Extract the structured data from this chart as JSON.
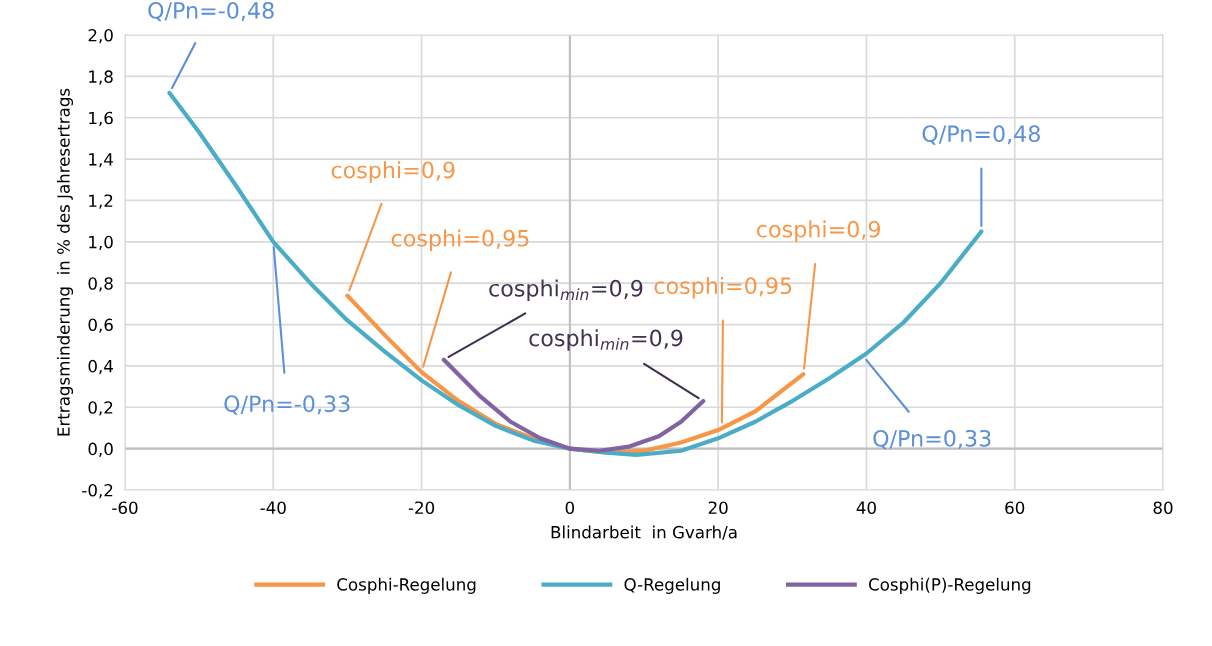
{
  "chart_data": {
    "type": "line",
    "xlabel": "Blindarbeit  in Gvarh/a",
    "ylabel": "Ertragsminderung  in % des Jahresertrags",
    "xlim": [
      -60,
      80
    ],
    "xticks": [
      -60,
      -40,
      -20,
      0,
      20,
      40,
      60,
      80
    ],
    "ylim": [
      -0.2,
      2.0
    ],
    "yticks": [
      {
        "value": -0.2,
        "label": "-0,2"
      },
      {
        "value": 0,
        "label": "0,0"
      },
      {
        "value": 0.2,
        "label": "0,2"
      },
      {
        "value": 0.4,
        "label": "0,4"
      },
      {
        "value": 0.6,
        "label": "0,6"
      },
      {
        "value": 0.8,
        "label": "0,8"
      },
      {
        "value": 1.0,
        "label": "1,0"
      },
      {
        "value": 1.2,
        "label": "1,2"
      },
      {
        "value": 1.4,
        "label": "1,4"
      },
      {
        "value": 1.6,
        "label": "1,6"
      },
      {
        "value": 1.8,
        "label": "1,8"
      },
      {
        "value": 2.0,
        "label": "2,0"
      }
    ],
    "grid": true,
    "legend": "bottom",
    "marker": "none",
    "line_style": "solid",
    "series": [
      {
        "name": "Cosphi-Regelung",
        "color": "#f79646",
        "x": [
          -30,
          -25,
          -20,
          -15,
          -10,
          -5,
          0,
          5,
          10,
          15,
          20,
          25,
          31.5
        ],
        "values": [
          0.74,
          0.55,
          0.37,
          0.23,
          0.12,
          0.05,
          0,
          -0.02,
          -0.01,
          0.03,
          0.09,
          0.18,
          0.36
        ]
      },
      {
        "name": "Q-Regelung",
        "color": "#4bacc6",
        "x": [
          -54,
          -50,
          -45,
          -40,
          -35,
          -30,
          -25,
          -20,
          -15,
          -10,
          -5,
          0,
          5,
          9,
          15,
          20,
          25,
          30,
          35,
          40,
          45,
          50,
          55.5
        ],
        "values": [
          1.72,
          1.53,
          1.27,
          1.0,
          0.8,
          0.62,
          0.47,
          0.33,
          0.21,
          0.11,
          0.04,
          0,
          -0.02,
          -0.03,
          -0.01,
          0.05,
          0.13,
          0.23,
          0.34,
          0.46,
          0.61,
          0.8,
          1.05
        ]
      },
      {
        "name": "Cosphi(P)-Regelung",
        "color": "#8064a2",
        "x": [
          -17,
          -12,
          -8,
          -4,
          0,
          4,
          8,
          12,
          15,
          18
        ],
        "values": [
          0.43,
          0.25,
          0.13,
          0.05,
          0,
          -0.01,
          0.01,
          0.06,
          0.13,
          0.23
        ]
      }
    ],
    "annotations": [
      {
        "text": "Q/Pn=-0,48",
        "x": -54,
        "y": 1.72
      },
      {
        "text": "Q/Pn=-0,33",
        "x": -40,
        "y": 1.0
      },
      {
        "text": "cosphi=0,9",
        "x": -30,
        "y": 0.74
      },
      {
        "text": "cosphi=0,95",
        "x": -20,
        "y": 0.37
      },
      {
        "text": "cosphi$_{min}$=0,9",
        "x": -17,
        "y": 0.43
      },
      {
        "text": "cosphi$_{min}$=0,9",
        "x": 18,
        "y": 0.23
      },
      {
        "text": "cosphi=0,95",
        "x": 20.5,
        "y": 0.1
      },
      {
        "text": "cosphi=0,9",
        "x": 31.5,
        "y": 0.36
      },
      {
        "text": "Q/Pn=0,48",
        "x": 55.5,
        "y": 1.05
      },
      {
        "text": "Q/Pn=0,33",
        "x": 39.5,
        "y": 0.45
      }
    ]
  }
}
